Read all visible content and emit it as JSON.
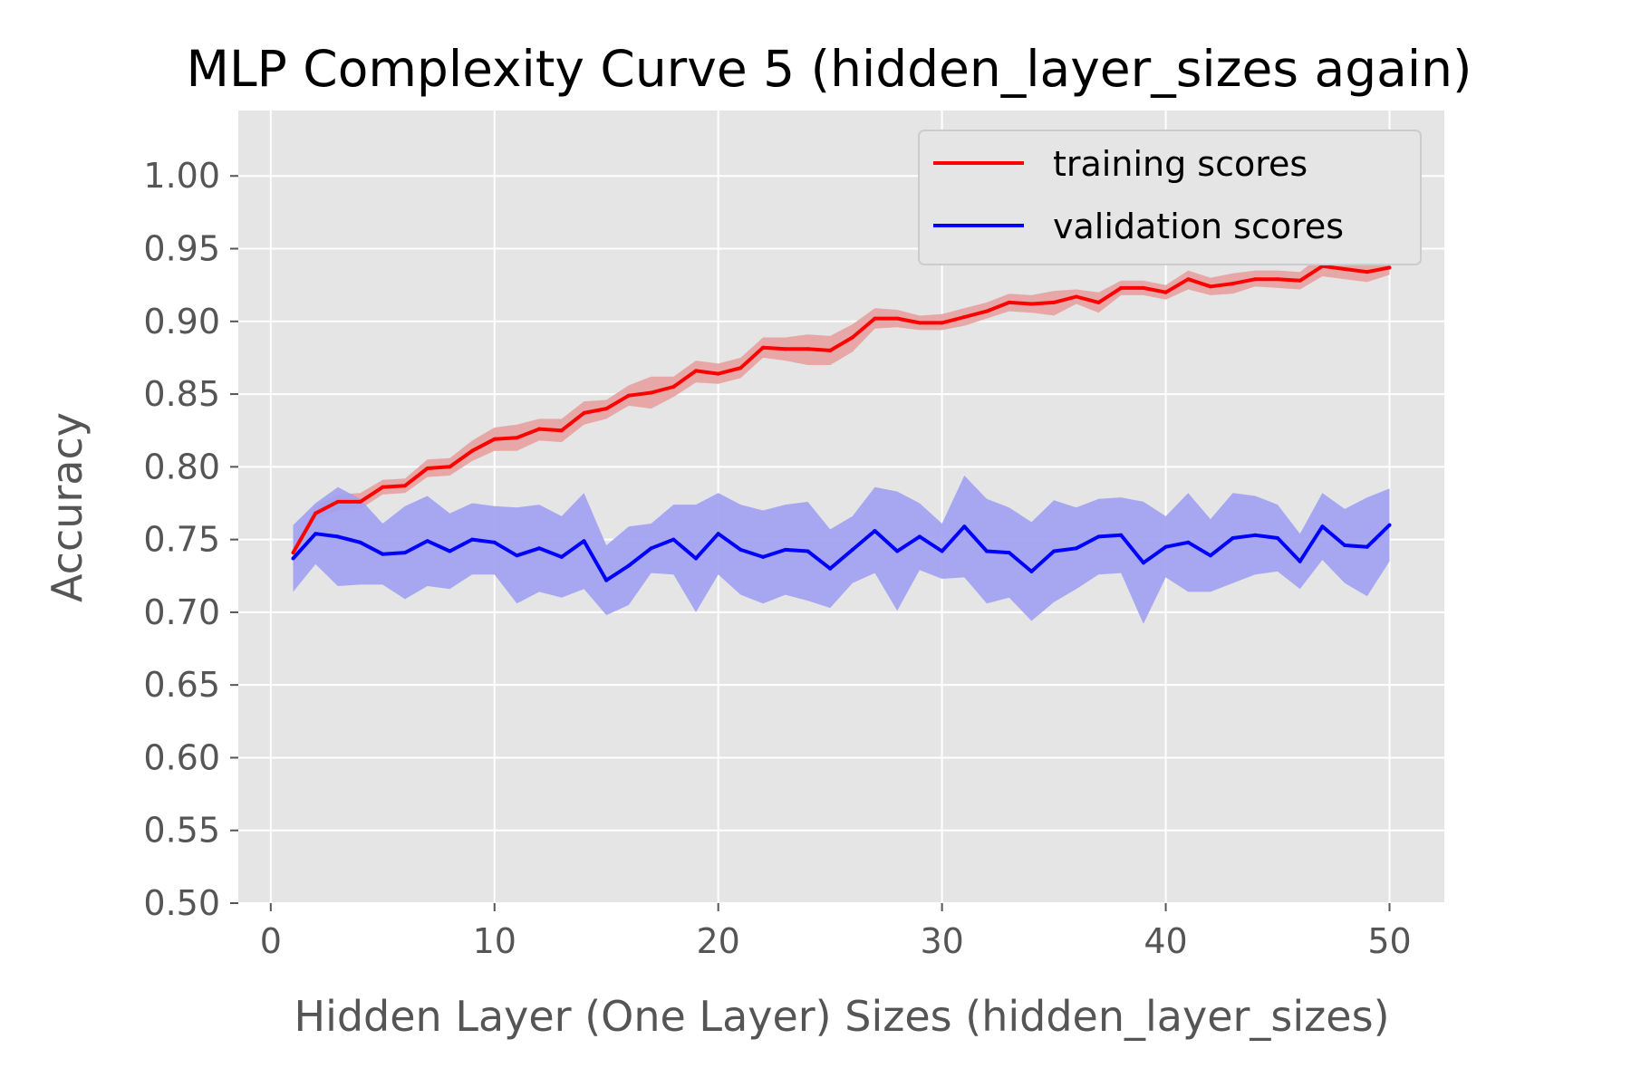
{
  "chart_data": {
    "type": "line",
    "title": "MLP Complexity Curve 5 (hidden_layer_sizes again)",
    "xlabel": "Hidden Layer (One Layer) Sizes (hidden_layer_sizes)",
    "ylabel": "Accuracy",
    "xlim": [
      -1.45,
      52.45
    ],
    "ylim": [
      0.5,
      1.045
    ],
    "xticks": [
      0,
      10,
      20,
      30,
      40,
      50
    ],
    "xtick_labels": [
      "0",
      "10",
      "20",
      "30",
      "40",
      "50"
    ],
    "yticks": [
      0.5,
      0.55,
      0.6,
      0.65,
      0.7,
      0.75,
      0.8,
      0.85,
      0.9,
      0.95,
      1.0
    ],
    "ytick_labels": [
      "0.50",
      "0.55",
      "0.60",
      "0.65",
      "0.70",
      "0.75",
      "0.80",
      "0.85",
      "0.90",
      "0.95",
      "1.00"
    ],
    "grid": true,
    "legend_position": "top-right",
    "x": [
      1,
      2,
      3,
      4,
      5,
      6,
      7,
      8,
      9,
      10,
      11,
      12,
      13,
      14,
      15,
      16,
      17,
      18,
      19,
      20,
      21,
      22,
      23,
      24,
      25,
      26,
      27,
      28,
      29,
      30,
      31,
      32,
      33,
      34,
      35,
      36,
      37,
      38,
      39,
      40,
      41,
      42,
      43,
      44,
      45,
      46,
      47,
      48,
      49,
      50
    ],
    "series": [
      {
        "name": "training scores",
        "color": "#ff0000",
        "band_color": "#e8a0a0",
        "values": [
          0.741,
          0.768,
          0.776,
          0.776,
          0.786,
          0.787,
          0.799,
          0.8,
          0.811,
          0.819,
          0.82,
          0.826,
          0.825,
          0.837,
          0.84,
          0.849,
          0.851,
          0.855,
          0.866,
          0.864,
          0.868,
          0.882,
          0.881,
          0.881,
          0.88,
          0.889,
          0.902,
          0.902,
          0.899,
          0.899,
          0.903,
          0.907,
          0.913,
          0.912,
          0.913,
          0.917,
          0.913,
          0.923,
          0.923,
          0.92,
          0.929,
          0.924,
          0.926,
          0.929,
          0.929,
          0.928,
          0.938,
          0.936,
          0.934,
          0.937
        ],
        "lower": [
          0.738,
          0.764,
          0.77,
          0.771,
          0.781,
          0.782,
          0.793,
          0.794,
          0.804,
          0.811,
          0.811,
          0.818,
          0.817,
          0.829,
          0.833,
          0.842,
          0.84,
          0.848,
          0.858,
          0.857,
          0.861,
          0.875,
          0.873,
          0.87,
          0.87,
          0.879,
          0.895,
          0.896,
          0.894,
          0.894,
          0.897,
          0.902,
          0.907,
          0.906,
          0.904,
          0.912,
          0.906,
          0.918,
          0.918,
          0.915,
          0.922,
          0.918,
          0.919,
          0.924,
          0.923,
          0.922,
          0.931,
          0.929,
          0.927,
          0.932
        ],
        "upper": [
          0.744,
          0.773,
          0.781,
          0.782,
          0.791,
          0.792,
          0.805,
          0.806,
          0.818,
          0.827,
          0.829,
          0.833,
          0.833,
          0.845,
          0.846,
          0.856,
          0.862,
          0.862,
          0.873,
          0.871,
          0.875,
          0.889,
          0.889,
          0.891,
          0.89,
          0.898,
          0.909,
          0.908,
          0.904,
          0.905,
          0.909,
          0.913,
          0.919,
          0.918,
          0.921,
          0.922,
          0.92,
          0.928,
          0.928,
          0.925,
          0.935,
          0.93,
          0.933,
          0.935,
          0.935,
          0.934,
          0.946,
          0.943,
          0.941,
          0.942
        ]
      },
      {
        "name": "validation scores",
        "color": "#0000ff",
        "band_color": "#a0a0f2",
        "values": [
          0.737,
          0.754,
          0.752,
          0.748,
          0.74,
          0.741,
          0.749,
          0.742,
          0.75,
          0.748,
          0.739,
          0.744,
          0.738,
          0.749,
          0.722,
          0.732,
          0.744,
          0.75,
          0.737,
          0.754,
          0.743,
          0.738,
          0.743,
          0.742,
          0.73,
          0.743,
          0.756,
          0.742,
          0.752,
          0.742,
          0.759,
          0.742,
          0.741,
          0.728,
          0.742,
          0.744,
          0.752,
          0.753,
          0.734,
          0.745,
          0.748,
          0.739,
          0.751,
          0.753,
          0.751,
          0.735,
          0.759,
          0.746,
          0.745,
          0.76
        ],
        "lower": [
          0.714,
          0.733,
          0.718,
          0.719,
          0.719,
          0.709,
          0.718,
          0.716,
          0.726,
          0.726,
          0.706,
          0.714,
          0.71,
          0.716,
          0.698,
          0.705,
          0.727,
          0.726,
          0.7,
          0.726,
          0.712,
          0.706,
          0.712,
          0.708,
          0.703,
          0.72,
          0.727,
          0.701,
          0.729,
          0.723,
          0.724,
          0.706,
          0.71,
          0.694,
          0.707,
          0.716,
          0.726,
          0.727,
          0.692,
          0.724,
          0.714,
          0.714,
          0.72,
          0.726,
          0.728,
          0.716,
          0.736,
          0.72,
          0.711,
          0.735
        ],
        "upper": [
          0.76,
          0.775,
          0.786,
          0.778,
          0.761,
          0.773,
          0.78,
          0.768,
          0.775,
          0.773,
          0.772,
          0.774,
          0.766,
          0.782,
          0.746,
          0.759,
          0.761,
          0.774,
          0.774,
          0.782,
          0.774,
          0.77,
          0.774,
          0.776,
          0.757,
          0.766,
          0.786,
          0.783,
          0.775,
          0.761,
          0.794,
          0.778,
          0.772,
          0.762,
          0.777,
          0.772,
          0.778,
          0.779,
          0.776,
          0.766,
          0.782,
          0.764,
          0.782,
          0.78,
          0.774,
          0.754,
          0.782,
          0.771,
          0.779,
          0.785
        ]
      }
    ]
  }
}
